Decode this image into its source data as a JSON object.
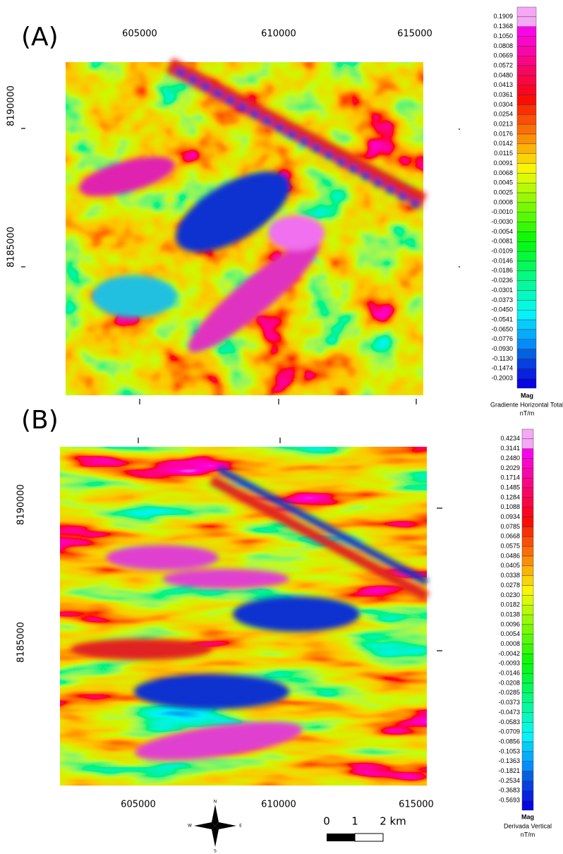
{
  "panels": [
    {
      "label": "(A)",
      "x_ticks": [
        "605000",
        "610000",
        "615000"
      ],
      "y_ticks": [
        "8190000",
        "8185000"
      ],
      "legend": {
        "title": "Mag",
        "subtitle": "Gradiente Horizontal Total",
        "unit": "nT/m",
        "values": [
          "0.1909",
          "0.1368",
          "0.1050",
          "0.0808",
          "0.0669",
          "0.0572",
          "0.0480",
          "0.0413",
          "0.0361",
          "0.0304",
          "0.0254",
          "0.0213",
          "0.0176",
          "0.0142",
          "0.0115",
          "0.0091",
          "0.0068",
          "0.0045",
          "0.0025",
          "0.0008",
          "-0.0010",
          "-0.0030",
          "-0.0054",
          "-0.0081",
          "-0.0109",
          "-0.0146",
          "-0.0186",
          "-0.0236",
          "-0.0301",
          "-0.0373",
          "-0.0450",
          "-0.0541",
          "-0.0650",
          "-0.0776",
          "-0.0930",
          "-0.1130",
          "-0.1474",
          "-0.2003"
        ]
      }
    },
    {
      "label": "(B)",
      "x_ticks": [
        "605000",
        "610000",
        "615000"
      ],
      "y_ticks": [
        "8190000",
        "8185000"
      ],
      "legend": {
        "title": "Mag",
        "subtitle": "Derivada Vertical",
        "unit": "nT/m",
        "values": [
          "0.4234",
          "0.3141",
          "0.2480",
          "0.2029",
          "0.1714",
          "0.1485",
          "0.1284",
          "0.1088",
          "0.0934",
          "0.0785",
          "0.0668",
          "0.0575",
          "0.0486",
          "0.0405",
          "0.0338",
          "0.0278",
          "0.0230",
          "0.0182",
          "0.0138",
          "0.0096",
          "0.0054",
          "0.0008",
          "-0.0042",
          "-0.0093",
          "-0.0146",
          "-0.0208",
          "-0.0285",
          "-0.0373",
          "-0.0473",
          "-0.0583",
          "-0.0709",
          "-0.0856",
          "-0.1053",
          "-0.1363",
          "-0.1821",
          "-0.2534",
          "-0.3683",
          "-0.5693"
        ]
      }
    }
  ],
  "north_arrow": {
    "n": "N",
    "s": "S",
    "e": "E",
    "w": "W"
  },
  "scale_bar": {
    "labels": [
      "0",
      "1",
      "2 km"
    ]
  }
}
